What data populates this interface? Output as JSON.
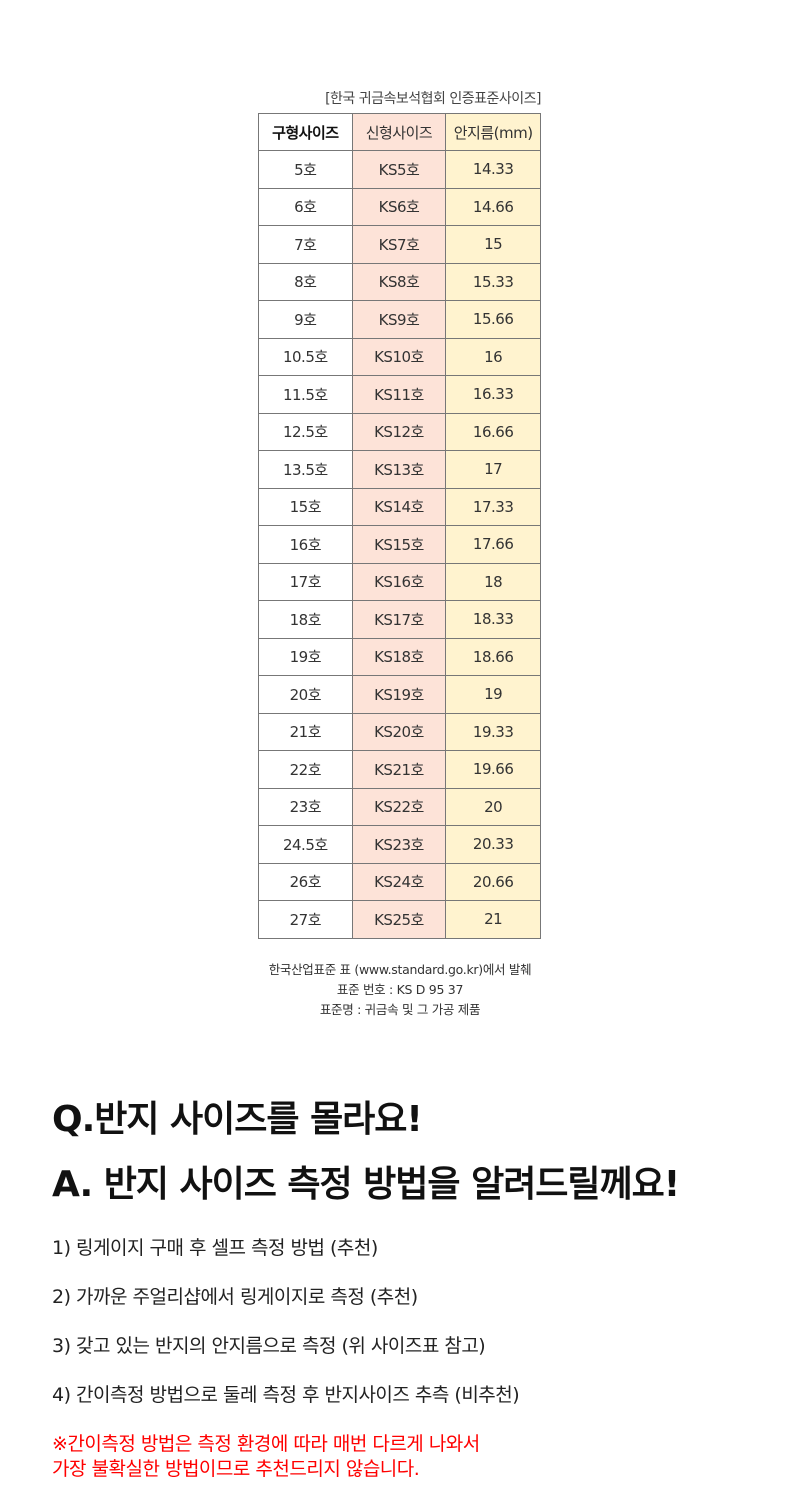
{
  "table": {
    "caption": "[한국 귀금속보석협회 인증표준사이즈]",
    "headers": [
      "구형사이즈",
      "신형사이즈",
      "안지름(mm)"
    ],
    "rows": [
      [
        "5호",
        "KS5호",
        "14.33"
      ],
      [
        "6호",
        "KS6호",
        "14.66"
      ],
      [
        "7호",
        "KS7호",
        "15"
      ],
      [
        "8호",
        "KS8호",
        "15.33"
      ],
      [
        "9호",
        "KS9호",
        "15.66"
      ],
      [
        "10.5호",
        "KS10호",
        "16"
      ],
      [
        "11.5호",
        "KS11호",
        "16.33"
      ],
      [
        "12.5호",
        "KS12호",
        "16.66"
      ],
      [
        "13.5호",
        "KS13호",
        "17"
      ],
      [
        "15호",
        "KS14호",
        "17.33"
      ],
      [
        "16호",
        "KS15호",
        "17.66"
      ],
      [
        "17호",
        "KS16호",
        "18"
      ],
      [
        "18호",
        "KS17호",
        "18.33"
      ],
      [
        "19호",
        "KS18호",
        "18.66"
      ],
      [
        "20호",
        "KS19호",
        "19"
      ],
      [
        "21호",
        "KS20호",
        "19.33"
      ],
      [
        "22호",
        "KS21호",
        "19.66"
      ],
      [
        "23호",
        "KS22호",
        "20"
      ],
      [
        "24.5호",
        "KS23호",
        "20.33"
      ],
      [
        "26호",
        "KS24호",
        "20.66"
      ],
      [
        "27호",
        "KS25호",
        "21"
      ]
    ]
  },
  "source": [
    "한국산업표준 표 (www.standard.go.kr)에서 발췌",
    "표준 번호 : KS D 95 37",
    "표준명 : 귀금속 및 그 가공 제품"
  ],
  "faq": {
    "question": "Q.반지 사이즈를 몰라요!",
    "answer": "A. 반지 사이즈 측정 방법을 알려드릴께요!",
    "items": [
      "1) 링게이지 구매 후 셀프 측정 방법 (추천)",
      "2) 가까운 주얼리샵에서 링게이지로 측정 (추천)",
      "3) 갖고 있는 반지의 안지름으로 측정 (위 사이즈표 참고)",
      "4) 간이측정 방법으로 둘레 측정 후 반지사이즈 추측 (비추천)"
    ],
    "note": [
      "※간이측정 방법은 측정 환경에 따라 매번 다르게 나와서",
      "가장 불확실한 방법이므로 추천드리지 않습니다."
    ]
  },
  "colors": {
    "old_col": "#ffffff",
    "new_col": "#fde3d8",
    "diameter_col": "#fff3cf",
    "note": "#ff0000"
  }
}
